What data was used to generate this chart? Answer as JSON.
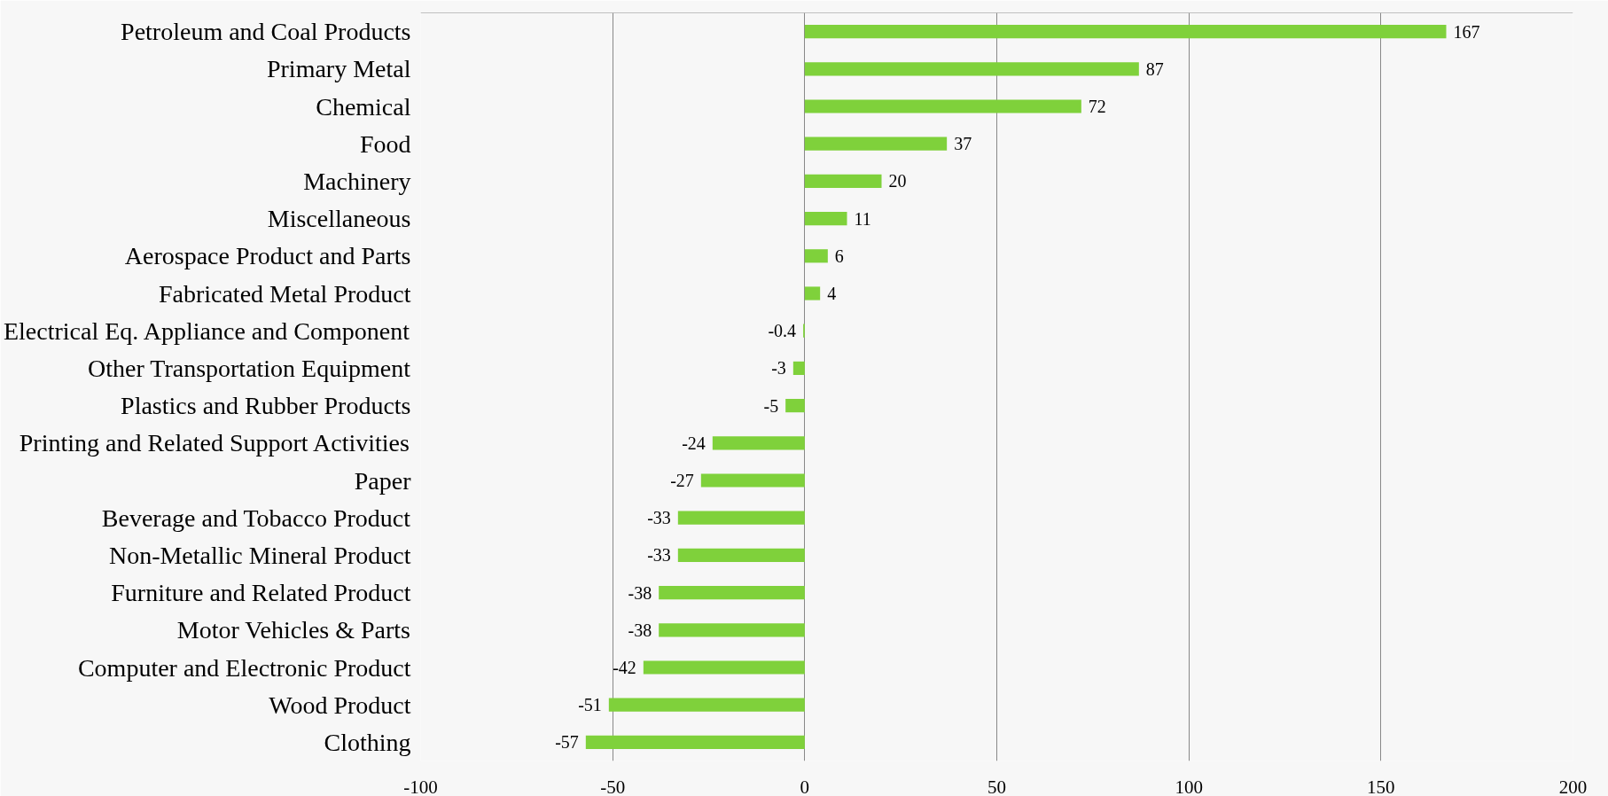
{
  "chart_data": {
    "type": "bar",
    "orientation": "horizontal",
    "color": "#7fd13b",
    "categories": [
      "Petroleum and Coal Products",
      "Primary Metal",
      "Chemical",
      "Food",
      "Machinery",
      "Miscellaneous",
      "Aerospace Product and Parts",
      "Fabricated Metal Product",
      "Electrical Eq. Appliance and Component",
      "Other Transportation Equipment",
      "Plastics and Rubber Products",
      "Printing and Related Support Activities",
      "Paper",
      "Beverage and Tobacco Product",
      "Non-Metallic Mineral Product",
      "Furniture and Related Product",
      "Motor Vehicles & Parts",
      "Computer and Electronic Product",
      "Wood Product",
      "Clothing"
    ],
    "values": [
      167,
      87,
      72,
      37,
      20,
      11,
      6,
      4,
      -0.4,
      -3,
      -5,
      -24,
      -27,
      -33,
      -33,
      -38,
      -38,
      -42,
      -51,
      -57
    ],
    "xlim": [
      -100,
      200
    ],
    "xticks": [
      -100,
      -50,
      0,
      50,
      100,
      150,
      200
    ],
    "grid": "x",
    "data_labels": true
  }
}
